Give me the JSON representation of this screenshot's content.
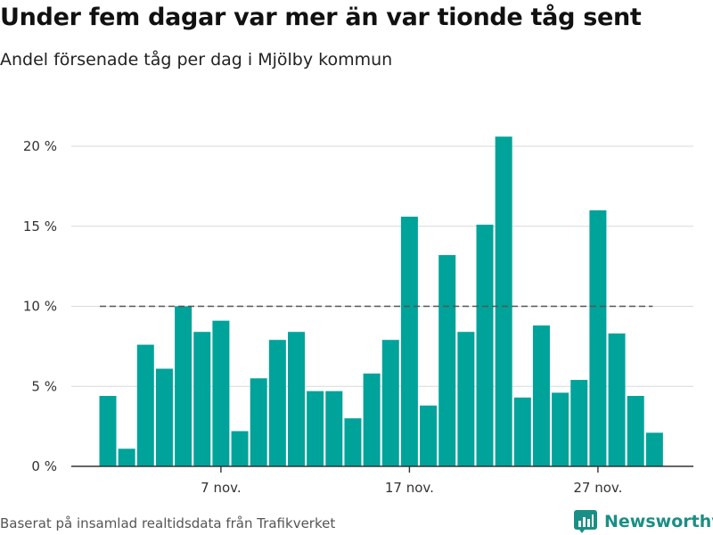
{
  "header": {
    "title": "Under fem dagar var mer än var tionde tåg sent",
    "subtitle": "Andel försenade tåg per dag i Mjölby kommun"
  },
  "footer": {
    "source": "Baserat på insamlad realtidsdata från Trafikverket",
    "brand": "Newsworthy"
  },
  "colors": {
    "bar": "#00a39a",
    "reference_line": "#555555",
    "grid": "#d9d9d9",
    "brand": "#1a8f85"
  },
  "chart_data": {
    "type": "bar",
    "title": "Under fem dagar var mer än var tionde tåg sent",
    "subtitle": "Andel försenade tåg per dag i Mjölby kommun",
    "x": [
      "2022-11-01",
      "2022-11-02",
      "2022-11-03",
      "2022-11-04",
      "2022-11-05",
      "2022-11-06",
      "2022-11-07",
      "2022-11-08",
      "2022-11-09",
      "2022-11-10",
      "2022-11-11",
      "2022-11-12",
      "2022-11-13",
      "2022-11-14",
      "2022-11-15",
      "2022-11-16",
      "2022-11-17",
      "2022-11-18",
      "2022-11-19",
      "2022-11-20",
      "2022-11-21",
      "2022-11-22",
      "2022-11-23",
      "2022-11-24",
      "2022-11-25",
      "2022-11-26",
      "2022-11-27",
      "2022-11-28",
      "2022-11-29",
      "2022-11-30"
    ],
    "values": [
      4.4,
      1.1,
      7.6,
      6.1,
      10.0,
      8.4,
      9.1,
      2.2,
      5.5,
      7.9,
      8.4,
      4.7,
      4.7,
      3.0,
      5.8,
      7.9,
      15.6,
      3.8,
      13.2,
      8.4,
      15.1,
      20.6,
      4.3,
      8.8,
      4.6,
      5.4,
      16.0,
      8.3,
      4.4,
      2.1
    ],
    "unit": "%",
    "ylim": [
      0,
      22
    ],
    "y_ticks": [
      0,
      5,
      10,
      15,
      20
    ],
    "y_tick_labels": [
      "0 %",
      "5 %",
      "10 %",
      "15 %",
      "20 %"
    ],
    "x_ticks": [
      {
        "date": "2022-11-07",
        "label": "7 nov."
      },
      {
        "date": "2022-11-17",
        "label": "17 nov."
      },
      {
        "date": "2022-11-27",
        "label": "27 nov."
      }
    ],
    "reference_line": {
      "value": 10,
      "style": "dashed"
    },
    "grid": true,
    "legend": "none"
  }
}
